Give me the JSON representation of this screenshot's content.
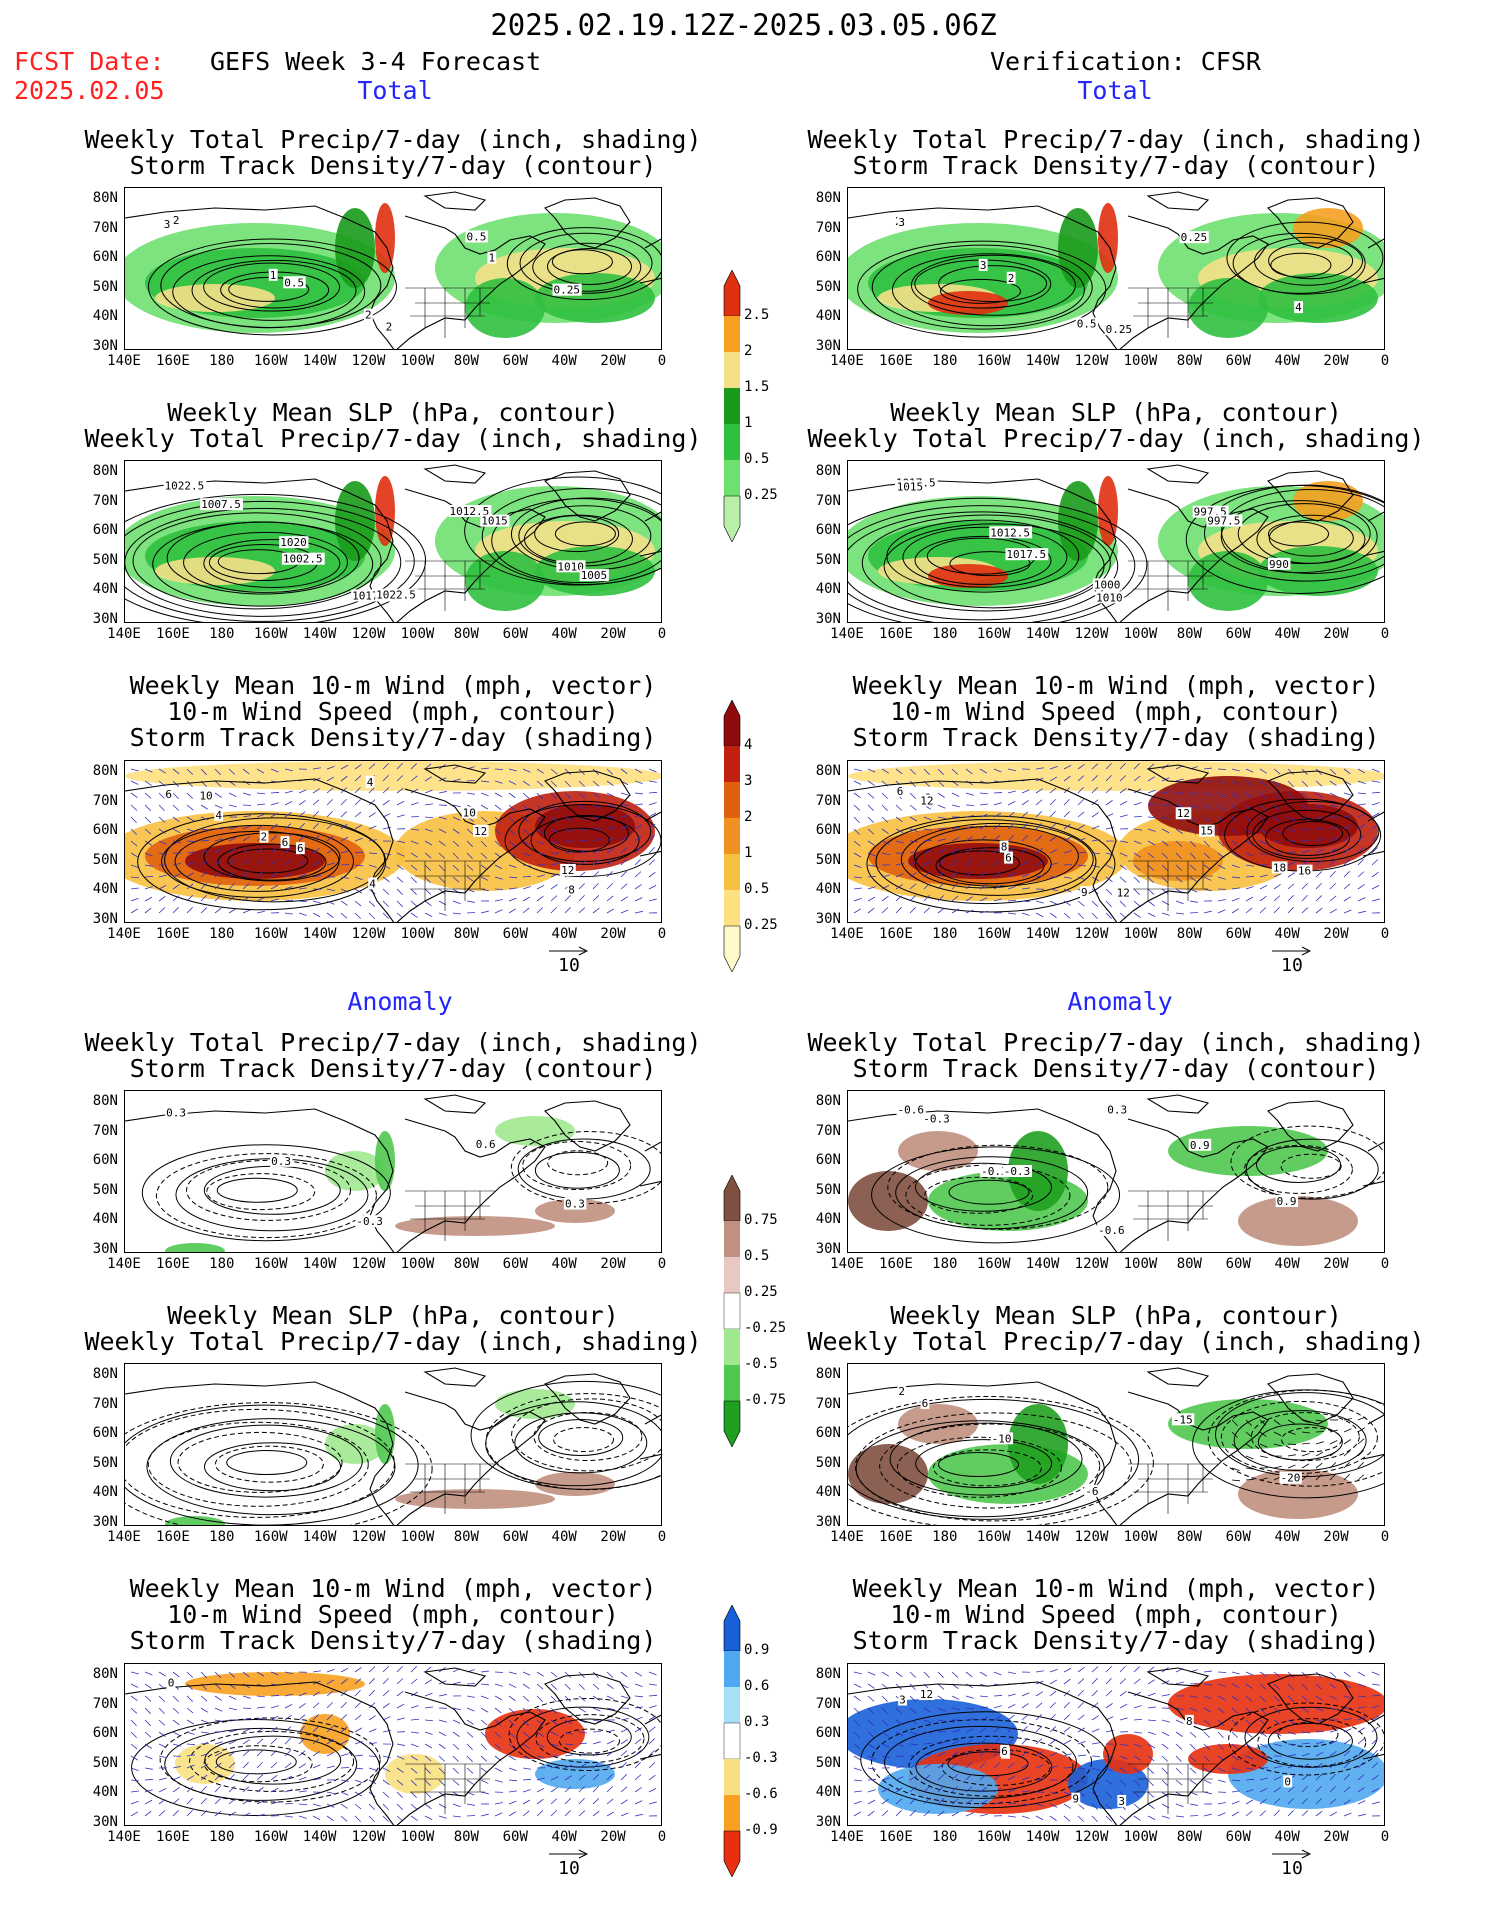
{
  "header": {
    "period": "2025.02.19.12Z-2025.03.05.06Z",
    "fcst_label": "FCST Date:",
    "fcst_date": "2025.02.05",
    "left_title": "GEFS Week 3-4 Forecast",
    "right_title": "Verification: CFSR",
    "section_total": "Total",
    "section_anomaly": "Anomaly"
  },
  "titles": {
    "precip_storm": [
      "Weekly Total Precip/7-day (inch, shading)",
      "Storm Track Density/7-day (contour)"
    ],
    "slp_precip": [
      "Weekly Mean SLP (hPa, contour)",
      "Weekly Total Precip/7-day (inch, shading)"
    ],
    "wind_storm": [
      "Weekly Mean 10-m Wind (mph, vector)",
      "10-m Wind Speed (mph, contour)",
      "Storm Track Density/7-day (shading)"
    ]
  },
  "axes": {
    "lat_ticks": [
      "80N",
      "70N",
      "60N",
      "50N",
      "40N",
      "30N"
    ],
    "lon_ticks": [
      "140E",
      "160E",
      "180",
      "160W",
      "140W",
      "120W",
      "100W",
      "80W",
      "60W",
      "40W",
      "20W",
      "0"
    ]
  },
  "vector_ref": "10",
  "colorbars": {
    "total_precip": {
      "labels": [
        "0.25",
        "0.5",
        "1",
        "1.5",
        "2",
        "2.5"
      ],
      "colors": [
        "#b8f0a8",
        "#6ee070",
        "#30c040",
        "#1a9a1a",
        "#f5e088",
        "#f5a020",
        "#e03010"
      ]
    },
    "total_storm": {
      "labels": [
        "0.25",
        "0.5",
        "1",
        "2",
        "3",
        "4"
      ],
      "colors": [
        "#fff8c8",
        "#ffe080",
        "#f8c040",
        "#f09020",
        "#e06010",
        "#c02010",
        "#900c0c"
      ]
    },
    "anom_precip": {
      "labels": [
        "0.75",
        "0.5",
        "0.25",
        "-0.25",
        "-0.5",
        "-0.75"
      ],
      "colors": [
        "#20a020",
        "#50c850",
        "#a0e890",
        "#ffffff",
        "#e8c8c0",
        "#c09080",
        "#805040"
      ]
    },
    "anom_storm": {
      "labels": [
        "0.9",
        "0.6",
        "0.3",
        "-0.3",
        "-0.6",
        "-0.9"
      ],
      "colors": [
        "#e83010",
        "#f8a020",
        "#f8e080",
        "#ffffff",
        "#a8e0f8",
        "#50a8f0",
        "#1860d8"
      ]
    }
  },
  "contour_labels": {
    "fcst_total_precip": [
      "3",
      "1",
      "2",
      "0.5",
      "0.25",
      "2",
      "0.5",
      "2",
      "1"
    ],
    "fcst_total_slp": [
      "1022.5",
      "1020",
      "1017.5",
      "1012.5",
      "1010",
      "1007.5",
      "1002.5",
      "1022.5",
      "1015",
      "1005"
    ],
    "fcst_total_wind": [
      "6",
      "2",
      "4",
      "10",
      "12",
      "10",
      "6",
      "4",
      "12",
      "8",
      "4",
      "6"
    ],
    "verif_total_precip": [
      "2",
      "3",
      "0.5",
      "0.25",
      "4",
      "3",
      "2",
      "0.25"
    ],
    "verif_total_slp": [
      "1017.5",
      "1012.5",
      "1000",
      "997.5",
      "990",
      "1015",
      "1017.5",
      "1010",
      "997.5"
    ],
    "verif_total_wind": [
      "6",
      "8",
      "9",
      "12",
      "18",
      "3",
      "6",
      "12",
      "15",
      "16",
      "12"
    ],
    "fcst_anom_precip": [
      "0.3",
      "0.3",
      "-0.3",
      "0.6",
      "0.3"
    ],
    "verif_anom_precip": [
      "-0.6",
      "-0.3",
      "-0.6",
      "0.9",
      "0.9",
      "-0.3",
      "-0.3",
      "0.3"
    ],
    "fcst_anom_slp": [],
    "verif_anom_slp": [
      "2",
      "-10",
      "-6",
      "-15",
      "-20",
      "6"
    ],
    "fcst_anom_wind": [
      "0"
    ],
    "verif_anom_wind": [
      "3",
      "6",
      "9",
      "8",
      "0",
      "12",
      "6",
      "3"
    ]
  }
}
